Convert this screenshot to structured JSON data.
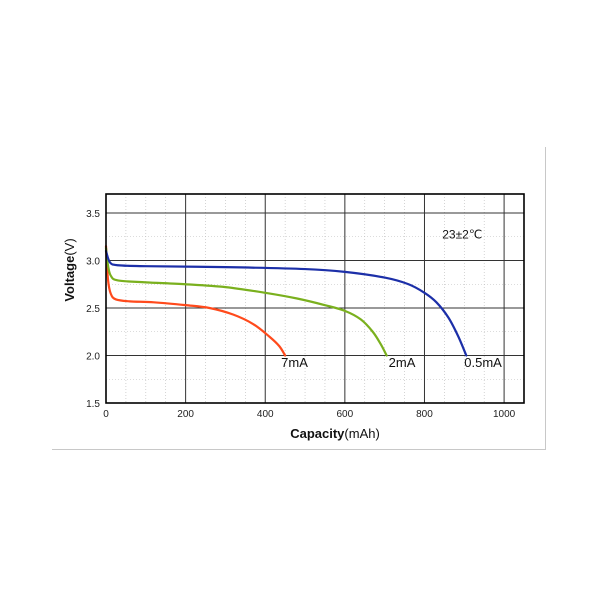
{
  "chart_data": {
    "type": "line",
    "title": "",
    "xlabel": {
      "bold": "Capacity",
      "unit": "(mAh)"
    },
    "ylabel": {
      "bold": "Voltage",
      "unit": "(V)"
    },
    "xlim": [
      0,
      1050
    ],
    "ylim": [
      1.5,
      3.7
    ],
    "x_ticks": [
      0,
      200,
      400,
      600,
      800,
      1000
    ],
    "y_ticks": [
      1.5,
      2.0,
      2.5,
      3.0,
      3.5
    ],
    "y_tick_labels": [
      "1.5",
      "2.0",
      "2.5",
      "3.0",
      "3.5"
    ],
    "grid": true,
    "annotation": "23±2℃",
    "series": [
      {
        "name": "7mA",
        "color": "#ff4a1c",
        "points": [
          [
            0,
            3.15
          ],
          [
            5,
            2.8
          ],
          [
            12,
            2.65
          ],
          [
            25,
            2.59
          ],
          [
            60,
            2.57
          ],
          [
            120,
            2.56
          ],
          [
            200,
            2.53
          ],
          [
            260,
            2.5
          ],
          [
            320,
            2.43
          ],
          [
            370,
            2.33
          ],
          [
            410,
            2.2
          ],
          [
            435,
            2.1
          ],
          [
            450,
            2.0
          ]
        ]
      },
      {
        "name": "2mA",
        "color": "#7ab01e",
        "points": [
          [
            0,
            3.13
          ],
          [
            5,
            2.95
          ],
          [
            12,
            2.84
          ],
          [
            30,
            2.79
          ],
          [
            100,
            2.77
          ],
          [
            200,
            2.75
          ],
          [
            300,
            2.72
          ],
          [
            400,
            2.66
          ],
          [
            480,
            2.6
          ],
          [
            550,
            2.53
          ],
          [
            600,
            2.47
          ],
          [
            640,
            2.38
          ],
          [
            670,
            2.25
          ],
          [
            690,
            2.12
          ],
          [
            705,
            2.0
          ]
        ]
      },
      {
        "name": "0.5mA",
        "color": "#1c2fa8",
        "points": [
          [
            0,
            3.1
          ],
          [
            10,
            2.98
          ],
          [
            30,
            2.95
          ],
          [
            100,
            2.94
          ],
          [
            300,
            2.93
          ],
          [
            500,
            2.91
          ],
          [
            600,
            2.88
          ],
          [
            700,
            2.82
          ],
          [
            760,
            2.75
          ],
          [
            800,
            2.66
          ],
          [
            830,
            2.56
          ],
          [
            860,
            2.4
          ],
          [
            885,
            2.2
          ],
          [
            905,
            2.0
          ]
        ]
      }
    ],
    "curve_labels": [
      {
        "series": "7mA",
        "text": "7mA",
        "x": 440,
        "y": 1.88
      },
      {
        "series": "2mA",
        "text": "2mA",
        "x": 710,
        "y": 1.88
      },
      {
        "series": "0.5mA",
        "text": "0.5mA",
        "x": 900,
        "y": 1.88
      }
    ],
    "annotation_pos": {
      "x": 895,
      "y": 3.23
    }
  }
}
